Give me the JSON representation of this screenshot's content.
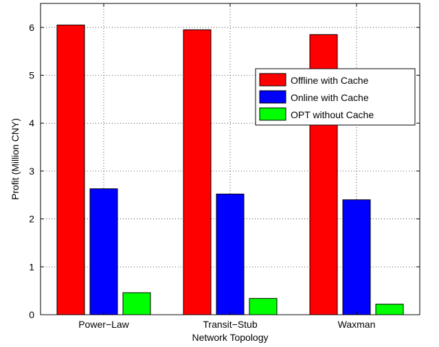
{
  "chart_data": {
    "type": "bar",
    "title": "",
    "xlabel": "Network Topology",
    "ylabel": "Profit (Million CNY)",
    "categories": [
      "Power−Law",
      "Transit−Stub",
      "Waxman"
    ],
    "ylim": [
      0,
      6.5
    ],
    "yticks": [
      "0",
      "1",
      "2",
      "3",
      "4",
      "5",
      "6"
    ],
    "grid": true,
    "legend_position": "upper-right",
    "series": [
      {
        "name": "Offline with Cache",
        "color": "#ff0000",
        "values": [
          6.05,
          5.95,
          5.85
        ]
      },
      {
        "name": "Online with Cache",
        "color": "#0000ff",
        "values": [
          2.63,
          2.52,
          2.4
        ]
      },
      {
        "name": "OPT without Cache",
        "color": "#00ff00",
        "values": [
          0.46,
          0.34,
          0.22
        ]
      }
    ]
  }
}
